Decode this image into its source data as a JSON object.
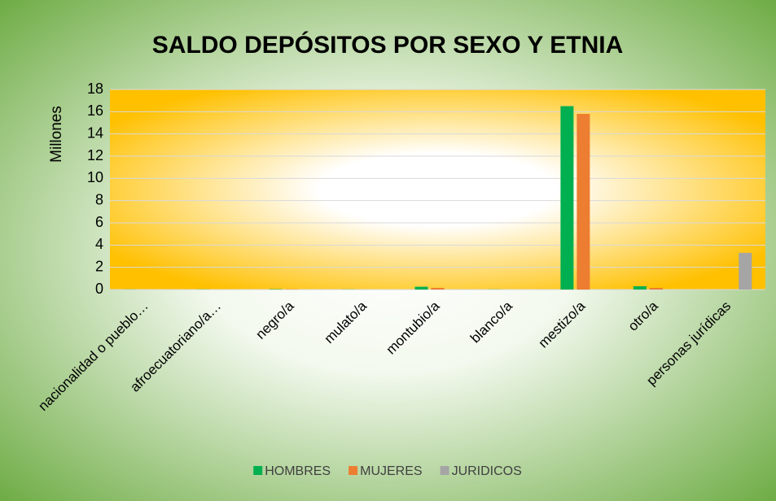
{
  "chart_data": {
    "type": "bar",
    "title": "SALDO DEPÓSITOS POR SEXO Y ETNIA",
    "y_label": "Millones",
    "categories": [
      "nacionalidad o pueblo…",
      "afroecuatoriano/a…",
      "negro/a",
      "mulato/a",
      "montubio/a",
      "blanco/a",
      "mestizo/a",
      "otro/a",
      "personas jurídicas"
    ],
    "series": [
      {
        "name": "HOMBRES",
        "color": "#00b050",
        "values": [
          0.01,
          0.01,
          0.03,
          0.01,
          0.25,
          0.01,
          16.5,
          0.3,
          0
        ]
      },
      {
        "name": "MUJERES",
        "color": "#ed7d31",
        "values": [
          0,
          0,
          0.02,
          0,
          0.15,
          0,
          15.8,
          0.15,
          0
        ]
      },
      {
        "name": "JURIDICOS",
        "color": "#a5a5a5",
        "values": [
          0,
          0,
          0,
          0,
          0,
          0,
          0,
          0,
          3.3
        ]
      }
    ],
    "ylim": [
      0,
      18
    ],
    "yticks": [
      0,
      2,
      4,
      6,
      8,
      10,
      12,
      14,
      16,
      18
    ],
    "grid": true,
    "legend": "bottom"
  }
}
